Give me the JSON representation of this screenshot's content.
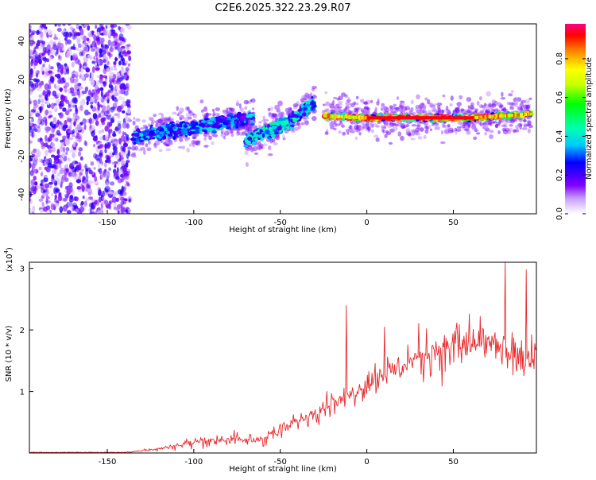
{
  "title": "C2E6.2025.322.23.29.R07",
  "chart_data": [
    {
      "type": "heatmap",
      "xlabel": "Height of straight line (km)",
      "ylabel": "Frequency (Hz)",
      "xlim": [
        -195,
        98
      ],
      "ylim": [
        -50,
        49
      ],
      "xticks": [
        -150,
        -100,
        -50,
        0,
        50
      ],
      "yticks": [
        -40,
        -20,
        0,
        20,
        40
      ],
      "colorbar": {
        "label": "Normalized spectral amplitude",
        "range": [
          0,
          0.98
        ],
        "ticks": [
          0.0,
          0.2,
          0.4,
          0.6,
          0.8
        ],
        "tick_labels": [
          "0.0",
          "0.2",
          "0.4",
          "0.6",
          "0.8"
        ],
        "colors": [
          "#ffffff",
          "#c8a0ff",
          "#8000ff",
          "#0000ff",
          "#00c8ff",
          "#00ffb0",
          "#00ff00",
          "#c8ff00",
          "#ffff00",
          "#ff8000",
          "#ff0000",
          "#ff0080"
        ]
      },
      "features": [
        {
          "label": "diffuse",
          "x_range": [
            -195,
            -137
          ],
          "frequency_center": 0,
          "frequency_spread": 49,
          "amplitude": 0.15
        },
        {
          "label": "band",
          "x": [
            -135,
            -100,
            -65
          ],
          "frequency": [
            -10,
            -5,
            0
          ],
          "amplitude": 0.3
        },
        {
          "label": "band",
          "x": [
            -70,
            -45,
            -30
          ],
          "frequency": [
            -12,
            -2,
            8
          ],
          "amplitude": 0.35
        },
        {
          "label": "band",
          "x": [
            -25,
            0,
            60,
            95
          ],
          "frequency": [
            1,
            0,
            0,
            2
          ],
          "amplitude": 0.9
        }
      ]
    },
    {
      "type": "line",
      "xlabel": "Height of straight line (km)",
      "ylabel": "SNR (10 * v/v)",
      "yscale_label": "(x10",
      "yscale_exponent": "4",
      "xlim": [
        -195,
        98
      ],
      "ylim": [
        0,
        3.1
      ],
      "xticks": [
        -150,
        -100,
        -50,
        0,
        50
      ],
      "yticks": [
        1,
        2,
        3
      ],
      "color": "#e8282c",
      "envelope": {
        "x": [
          -195,
          -140,
          -125,
          -110,
          -95,
          -80,
          -65,
          -50,
          -35,
          -22,
          -10,
          0,
          10,
          25,
          40,
          60,
          70,
          80,
          90,
          98
        ],
        "y": [
          0.01,
          0.01,
          0.05,
          0.12,
          0.2,
          0.22,
          0.2,
          0.35,
          0.6,
          0.8,
          0.95,
          1.15,
          1.3,
          1.5,
          1.7,
          1.75,
          1.8,
          1.6,
          1.55,
          1.5
        ]
      },
      "spikes": [
        {
          "x": -12,
          "y": 2.4
        },
        {
          "x": 10,
          "y": 2.05
        },
        {
          "x": 80,
          "y": 3.1
        },
        {
          "x": 92,
          "y": 2.98
        }
      ]
    }
  ]
}
